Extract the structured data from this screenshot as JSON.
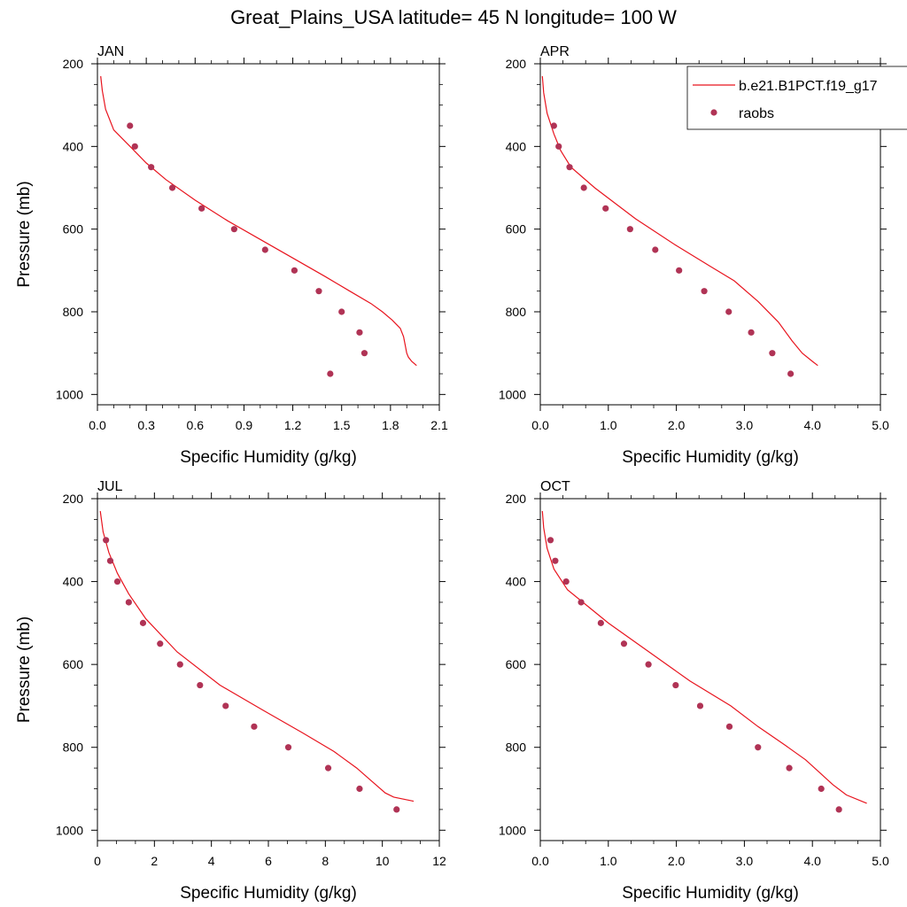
{
  "title": "Great_Plains_USA  latitude= 45 N longitude= 100 W",
  "legend": {
    "model_label": "b.e21.B1PCT.f19_g17",
    "obs_label": "raobs"
  },
  "colors": {
    "model_line": "#e8141e",
    "obs_marker": "#b03355",
    "axes": "#000000"
  },
  "chart_data": [
    {
      "type": "line",
      "panel": "JAN",
      "xlabel": "Specific Humidity (g/kg)",
      "ylabel": "Pressure (mb)",
      "xlim": [
        0,
        2.1
      ],
      "ylim": [
        200,
        1025
      ],
      "y_inverted": true,
      "x_ticks": [
        "0.0",
        "0.3",
        "0.6",
        "0.9",
        "1.2",
        "1.5",
        "1.8",
        "2.1"
      ],
      "x_tick_values": [
        0,
        0.3,
        0.6,
        0.9,
        1.2,
        1.5,
        1.8,
        2.1
      ],
      "y_ticks": [
        "200",
        "400",
        "600",
        "800",
        "1000"
      ],
      "y_tick_values": [
        200,
        400,
        600,
        800,
        1000
      ],
      "series": [
        {
          "name": "b.e21.B1PCT.f19_g17",
          "kind": "line",
          "x": [
            0.02,
            0.03,
            0.05,
            0.1,
            0.2,
            0.3,
            0.42,
            0.6,
            0.8,
            1.0,
            1.2,
            1.4,
            1.55,
            1.68,
            1.75,
            1.81,
            1.86,
            1.88,
            1.89,
            1.9,
            1.91,
            1.93,
            1.96
          ],
          "y": [
            230,
            265,
            310,
            360,
            400,
            440,
            480,
            530,
            580,
            625,
            670,
            715,
            750,
            780,
            800,
            820,
            840,
            860,
            880,
            900,
            910,
            920,
            930
          ]
        },
        {
          "name": "raobs",
          "kind": "scatter",
          "x": [
            0.2,
            0.23,
            0.33,
            0.46,
            0.64,
            0.84,
            1.03,
            1.21,
            1.36,
            1.5,
            1.61,
            1.64,
            1.43
          ],
          "y": [
            350,
            400,
            450,
            500,
            550,
            600,
            650,
            700,
            750,
            800,
            850,
            900,
            950
          ]
        }
      ]
    },
    {
      "type": "line",
      "panel": "APR",
      "xlabel": "Specific Humidity (g/kg)",
      "ylabel": "",
      "xlim": [
        0,
        5.0
      ],
      "ylim": [
        200,
        1025
      ],
      "y_inverted": true,
      "x_ticks": [
        "0.0",
        "1.0",
        "2.0",
        "3.0",
        "4.0",
        "5.0"
      ],
      "x_tick_values": [
        0,
        1,
        2,
        3,
        4,
        5
      ],
      "y_ticks": [
        "200",
        "400",
        "600",
        "800",
        "1000"
      ],
      "y_tick_values": [
        200,
        400,
        600,
        800,
        1000
      ],
      "series": [
        {
          "name": "b.e21.B1PCT.f19_g17",
          "kind": "line",
          "x": [
            0.03,
            0.05,
            0.1,
            0.2,
            0.3,
            0.45,
            0.8,
            1.4,
            2.0,
            2.5,
            2.85,
            3.2,
            3.5,
            3.7,
            3.85,
            4.0,
            4.08
          ],
          "y": [
            230,
            270,
            320,
            370,
            410,
            450,
            500,
            575,
            640,
            690,
            725,
            775,
            825,
            870,
            900,
            920,
            930
          ]
        },
        {
          "name": "raobs",
          "kind": "scatter",
          "x": [
            0.2,
            0.27,
            0.43,
            0.64,
            0.96,
            1.32,
            1.69,
            2.04,
            2.41,
            2.77,
            3.1,
            3.41,
            3.68
          ],
          "y": [
            350,
            400,
            450,
            500,
            550,
            600,
            650,
            700,
            750,
            800,
            850,
            900,
            950
          ]
        }
      ]
    },
    {
      "type": "line",
      "panel": "JUL",
      "xlabel": "Specific Humidity (g/kg)",
      "ylabel": "Pressure (mb)",
      "xlim": [
        0,
        12
      ],
      "ylim": [
        200,
        1025
      ],
      "y_inverted": true,
      "x_ticks": [
        "0",
        "2",
        "4",
        "6",
        "8",
        "10",
        "12"
      ],
      "x_tick_values": [
        0,
        2,
        4,
        6,
        8,
        10,
        12
      ],
      "y_ticks": [
        "200",
        "400",
        "600",
        "800",
        "1000"
      ],
      "y_tick_values": [
        200,
        400,
        600,
        800,
        1000
      ],
      "series": [
        {
          "name": "b.e21.B1PCT.f19_g17",
          "kind": "line",
          "x": [
            0.1,
            0.2,
            0.4,
            0.7,
            1.1,
            1.7,
            2.8,
            4.3,
            5.8,
            7.2,
            8.3,
            9.1,
            9.6,
            10.1,
            10.4,
            11.1
          ],
          "y": [
            230,
            280,
            330,
            380,
            430,
            490,
            570,
            650,
            710,
            765,
            810,
            850,
            880,
            910,
            920,
            930
          ]
        },
        {
          "name": "raobs",
          "kind": "scatter",
          "x": [
            0.3,
            0.45,
            0.7,
            1.1,
            1.6,
            2.2,
            2.9,
            3.6,
            4.5,
            5.5,
            6.7,
            8.1,
            9.2,
            10.5
          ],
          "y": [
            300,
            350,
            400,
            450,
            500,
            550,
            600,
            650,
            700,
            750,
            800,
            850,
            900,
            950
          ]
        }
      ]
    },
    {
      "type": "line",
      "panel": "OCT",
      "xlabel": "Specific Humidity (g/kg)",
      "ylabel": "",
      "xlim": [
        0,
        5.0
      ],
      "ylim": [
        200,
        1025
      ],
      "y_inverted": true,
      "x_ticks": [
        "0.0",
        "1.0",
        "2.0",
        "3.0",
        "4.0",
        "5.0"
      ],
      "x_tick_values": [
        0,
        1,
        2,
        3,
        4,
        5
      ],
      "y_ticks": [
        "200",
        "400",
        "600",
        "800",
        "1000"
      ],
      "y_tick_values": [
        200,
        400,
        600,
        800,
        1000
      ],
      "series": [
        {
          "name": "b.e21.B1PCT.f19_g17",
          "kind": "line",
          "x": [
            0.03,
            0.05,
            0.1,
            0.2,
            0.4,
            0.7,
            1.0,
            1.6,
            2.2,
            2.8,
            3.2,
            3.6,
            3.9,
            4.1,
            4.3,
            4.5,
            4.8
          ],
          "y": [
            230,
            270,
            320,
            370,
            420,
            460,
            500,
            570,
            640,
            700,
            750,
            795,
            830,
            860,
            890,
            915,
            935
          ]
        },
        {
          "name": "raobs",
          "kind": "scatter",
          "x": [
            0.15,
            0.22,
            0.38,
            0.6,
            0.89,
            1.23,
            1.59,
            1.99,
            2.35,
            2.78,
            3.2,
            3.66,
            4.13,
            4.39
          ],
          "y": [
            300,
            350,
            400,
            450,
            500,
            550,
            600,
            650,
            700,
            750,
            800,
            850,
            900,
            950
          ]
        }
      ]
    }
  ]
}
